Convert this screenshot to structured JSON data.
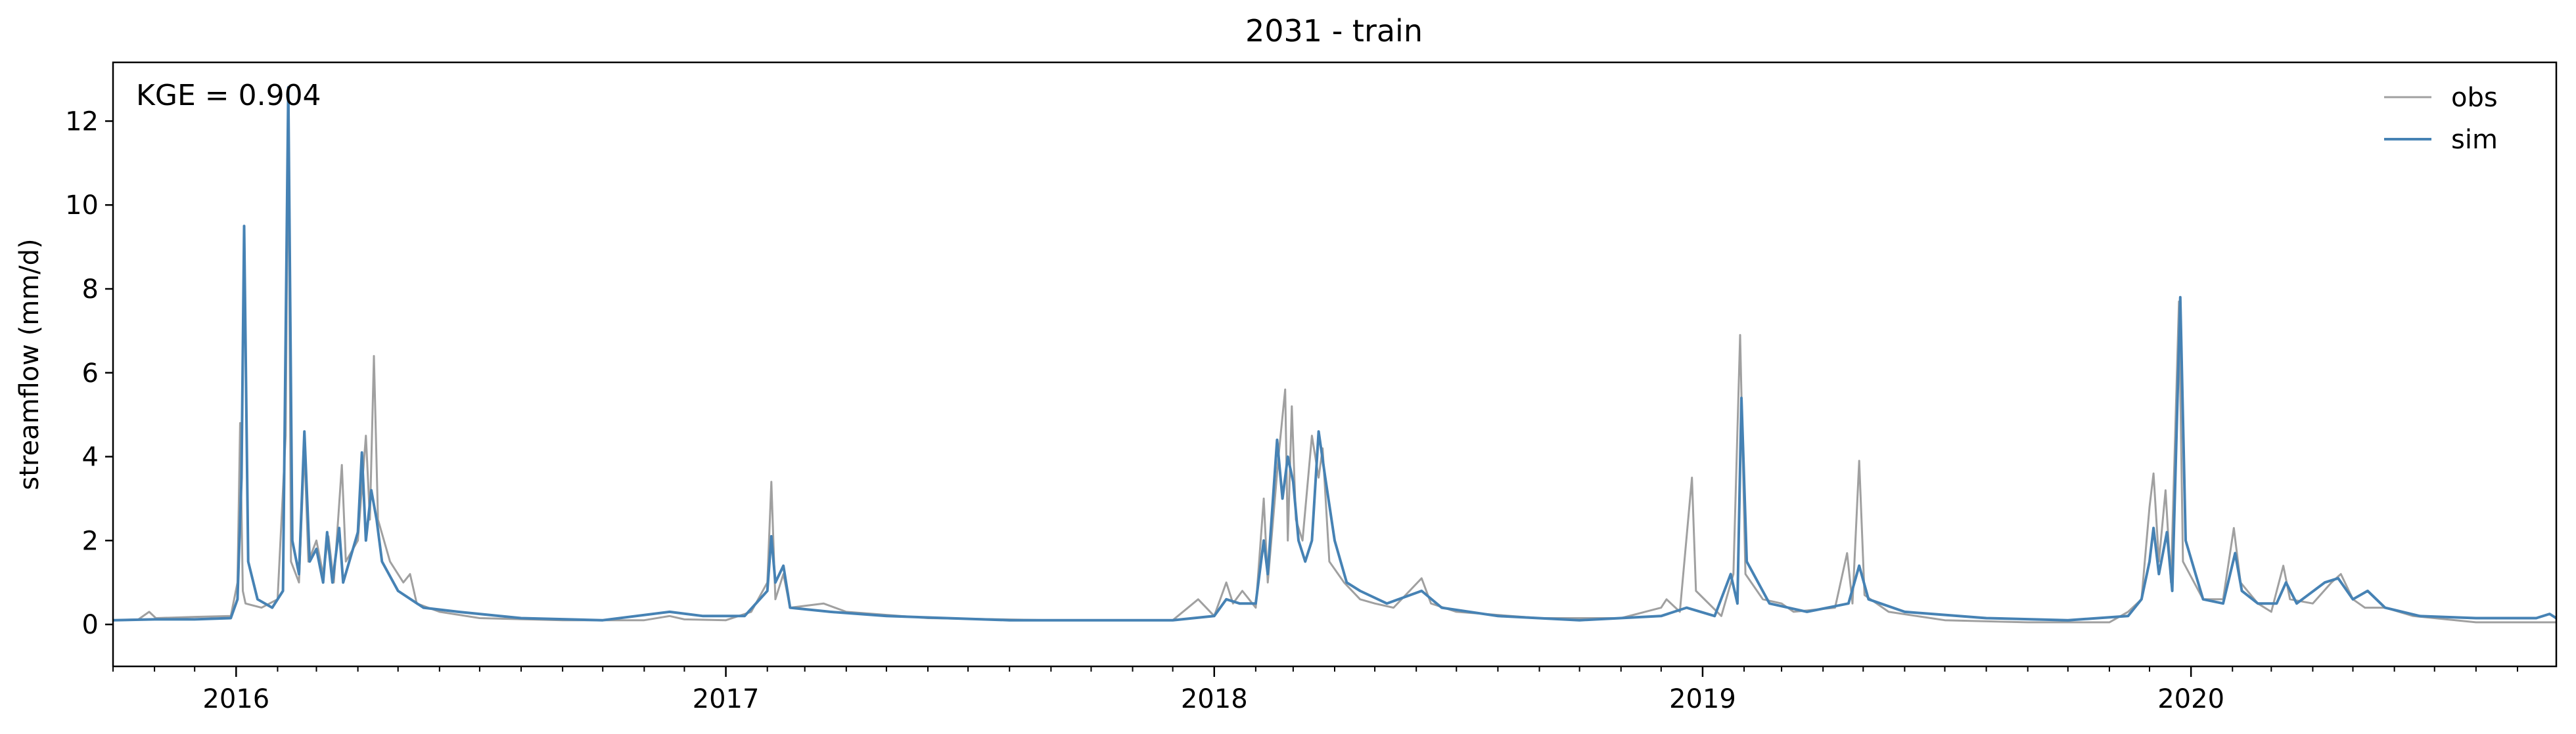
{
  "chart_data": {
    "type": "line",
    "title": "2031 - train",
    "xlabel": "",
    "ylabel": "streamflow (mm/d)",
    "annotation": "KGE = 0.904",
    "xlim": [
      "2015-10-01",
      "2020-09-30"
    ],
    "ylim": [
      -1,
      13.4
    ],
    "yticks": [
      0,
      2,
      4,
      6,
      8,
      10,
      12
    ],
    "xticks": [
      {
        "date": "2016-01-01",
        "label": "2016"
      },
      {
        "date": "2017-01-01",
        "label": "2017"
      },
      {
        "date": "2018-01-01",
        "label": "2018"
      },
      {
        "date": "2019-01-01",
        "label": "2019"
      },
      {
        "date": "2020-01-01",
        "label": "2020"
      }
    ],
    "legend_position": "top-right",
    "grid": false,
    "series": [
      {
        "name": "obs",
        "color": "#a0a0a0",
        "points": [
          [
            "2015-10-01",
            0.1
          ],
          [
            "2015-10-20",
            0.12
          ],
          [
            "2015-10-28",
            0.3
          ],
          [
            "2015-11-02",
            0.15
          ],
          [
            "2015-12-01",
            0.18
          ],
          [
            "2015-12-28",
            0.2
          ],
          [
            "2016-01-02",
            1.0
          ],
          [
            "2016-01-04",
            4.8
          ],
          [
            "2016-01-06",
            0.8
          ],
          [
            "2016-01-08",
            0.5
          ],
          [
            "2016-01-20",
            0.4
          ],
          [
            "2016-02-01",
            0.6
          ],
          [
            "2016-02-07",
            4.5
          ],
          [
            "2016-02-09",
            12.5
          ],
          [
            "2016-02-11",
            1.5
          ],
          [
            "2016-02-17",
            1.0
          ],
          [
            "2016-02-21",
            4.2
          ],
          [
            "2016-02-24",
            1.5
          ],
          [
            "2016-03-01",
            2.0
          ],
          [
            "2016-03-06",
            1.2
          ],
          [
            "2016-03-10",
            2.1
          ],
          [
            "2016-03-14",
            1.0
          ],
          [
            "2016-03-20",
            3.8
          ],
          [
            "2016-03-23",
            1.5
          ],
          [
            "2016-04-01",
            2.0
          ],
          [
            "2016-04-07",
            4.5
          ],
          [
            "2016-04-10",
            2.5
          ],
          [
            "2016-04-13",
            6.4
          ],
          [
            "2016-04-16",
            2.5
          ],
          [
            "2016-04-25",
            1.5
          ],
          [
            "2016-05-05",
            1.0
          ],
          [
            "2016-05-10",
            1.2
          ],
          [
            "2016-05-15",
            0.5
          ],
          [
            "2016-06-01",
            0.3
          ],
          [
            "2016-07-01",
            0.15
          ],
          [
            "2016-09-01",
            0.1
          ],
          [
            "2016-11-01",
            0.1
          ],
          [
            "2016-11-20",
            0.2
          ],
          [
            "2016-12-01",
            0.12
          ],
          [
            "2017-01-01",
            0.1
          ],
          [
            "2017-01-20",
            0.3
          ],
          [
            "2017-02-01",
            1.0
          ],
          [
            "2017-02-04",
            3.4
          ],
          [
            "2017-02-07",
            0.6
          ],
          [
            "2017-02-13",
            1.2
          ],
          [
            "2017-02-18",
            0.4
          ],
          [
            "2017-03-15",
            0.5
          ],
          [
            "2017-04-01",
            0.3
          ],
          [
            "2017-06-01",
            0.15
          ],
          [
            "2017-09-01",
            0.1
          ],
          [
            "2017-12-01",
            0.1
          ],
          [
            "2017-12-20",
            0.6
          ],
          [
            "2018-01-01",
            0.2
          ],
          [
            "2018-01-10",
            1.0
          ],
          [
            "2018-01-15",
            0.5
          ],
          [
            "2018-01-22",
            0.8
          ],
          [
            "2018-02-01",
            0.4
          ],
          [
            "2018-02-07",
            3.0
          ],
          [
            "2018-02-10",
            1.0
          ],
          [
            "2018-02-18",
            4.0
          ],
          [
            "2018-02-23",
            5.6
          ],
          [
            "2018-02-25",
            2.0
          ],
          [
            "2018-02-28",
            5.2
          ],
          [
            "2018-03-03",
            2.5
          ],
          [
            "2018-03-08",
            2.0
          ],
          [
            "2018-03-15",
            4.5
          ],
          [
            "2018-03-20",
            3.5
          ],
          [
            "2018-03-23",
            4.2
          ],
          [
            "2018-03-28",
            1.5
          ],
          [
            "2018-04-08",
            1.0
          ],
          [
            "2018-04-20",
            0.6
          ],
          [
            "2018-05-01",
            0.5
          ],
          [
            "2018-05-15",
            0.4
          ],
          [
            "2018-06-05",
            1.1
          ],
          [
            "2018-06-12",
            0.5
          ],
          [
            "2018-07-01",
            0.3
          ],
          [
            "2018-09-01",
            0.15
          ],
          [
            "2018-11-01",
            0.15
          ],
          [
            "2018-12-01",
            0.4
          ],
          [
            "2018-12-05",
            0.6
          ],
          [
            "2018-12-15",
            0.3
          ],
          [
            "2018-12-24",
            3.5
          ],
          [
            "2018-12-27",
            0.8
          ],
          [
            "2019-01-15",
            0.2
          ],
          [
            "2019-01-24",
            1.2
          ],
          [
            "2019-01-29",
            6.9
          ],
          [
            "2019-02-02",
            1.2
          ],
          [
            "2019-02-15",
            0.6
          ],
          [
            "2019-03-01",
            0.5
          ],
          [
            "2019-03-10",
            0.3
          ],
          [
            "2019-04-10",
            0.4
          ],
          [
            "2019-04-19",
            1.7
          ],
          [
            "2019-04-23",
            0.5
          ],
          [
            "2019-04-28",
            3.9
          ],
          [
            "2019-05-02",
            0.7
          ],
          [
            "2019-05-20",
            0.3
          ],
          [
            "2019-07-01",
            0.1
          ],
          [
            "2019-09-01",
            0.05
          ],
          [
            "2019-11-01",
            0.05
          ],
          [
            "2019-11-15",
            0.3
          ],
          [
            "2019-11-25",
            0.6
          ],
          [
            "2019-12-01",
            2.8
          ],
          [
            "2019-12-04",
            3.6
          ],
          [
            "2019-12-08",
            1.5
          ],
          [
            "2019-12-13",
            3.2
          ],
          [
            "2019-12-17",
            1.0
          ],
          [
            "2019-12-23",
            7.7
          ],
          [
            "2019-12-26",
            1.5
          ],
          [
            "2020-01-10",
            0.6
          ],
          [
            "2020-01-25",
            0.6
          ],
          [
            "2020-02-02",
            2.3
          ],
          [
            "2020-02-07",
            1.0
          ],
          [
            "2020-02-20",
            0.5
          ],
          [
            "2020-03-01",
            0.3
          ],
          [
            "2020-03-10",
            1.4
          ],
          [
            "2020-03-15",
            0.6
          ],
          [
            "2020-04-01",
            0.5
          ],
          [
            "2020-04-15",
            1.0
          ],
          [
            "2020-04-22",
            1.2
          ],
          [
            "2020-05-01",
            0.6
          ],
          [
            "2020-05-10",
            0.4
          ],
          [
            "2020-05-25",
            0.4
          ],
          [
            "2020-06-15",
            0.2
          ],
          [
            "2020-08-01",
            0.05
          ],
          [
            "2020-09-15",
            0.05
          ],
          [
            "2020-09-30",
            0.05
          ]
        ]
      },
      {
        "name": "sim",
        "color": "#4682b4",
        "points": [
          [
            "2015-10-01",
            0.1
          ],
          [
            "2015-11-01",
            0.12
          ],
          [
            "2015-12-01",
            0.12
          ],
          [
            "2015-12-28",
            0.15
          ],
          [
            "2016-01-02",
            0.6
          ],
          [
            "2016-01-05",
            3.5
          ],
          [
            "2016-01-07",
            9.5
          ],
          [
            "2016-01-10",
            1.5
          ],
          [
            "2016-01-17",
            0.6
          ],
          [
            "2016-01-28",
            0.4
          ],
          [
            "2016-02-05",
            0.8
          ],
          [
            "2016-02-09",
            12.8
          ],
          [
            "2016-02-12",
            2.0
          ],
          [
            "2016-02-17",
            1.2
          ],
          [
            "2016-02-21",
            4.6
          ],
          [
            "2016-02-25",
            1.5
          ],
          [
            "2016-03-01",
            1.8
          ],
          [
            "2016-03-06",
            1.0
          ],
          [
            "2016-03-09",
            2.2
          ],
          [
            "2016-03-13",
            1.0
          ],
          [
            "2016-03-18",
            2.3
          ],
          [
            "2016-03-21",
            1.0
          ],
          [
            "2016-04-01",
            2.2
          ],
          [
            "2016-04-04",
            4.1
          ],
          [
            "2016-04-07",
            2.0
          ],
          [
            "2016-04-11",
            3.2
          ],
          [
            "2016-04-15",
            2.5
          ],
          [
            "2016-04-19",
            1.5
          ],
          [
            "2016-05-01",
            0.8
          ],
          [
            "2016-05-20",
            0.4
          ],
          [
            "2016-06-15",
            0.3
          ],
          [
            "2016-08-01",
            0.15
          ],
          [
            "2016-10-01",
            0.1
          ],
          [
            "2016-11-20",
            0.3
          ],
          [
            "2016-12-15",
            0.2
          ],
          [
            "2017-01-15",
            0.2
          ],
          [
            "2017-02-01",
            0.8
          ],
          [
            "2017-02-04",
            2.1
          ],
          [
            "2017-02-07",
            1.0
          ],
          [
            "2017-02-13",
            1.4
          ],
          [
            "2017-02-18",
            0.4
          ],
          [
            "2017-03-20",
            0.3
          ],
          [
            "2017-05-01",
            0.2
          ],
          [
            "2017-08-01",
            0.1
          ],
          [
            "2017-12-01",
            0.1
          ],
          [
            "2018-01-01",
            0.2
          ],
          [
            "2018-01-10",
            0.6
          ],
          [
            "2018-01-20",
            0.5
          ],
          [
            "2018-02-01",
            0.5
          ],
          [
            "2018-02-07",
            2.0
          ],
          [
            "2018-02-10",
            1.2
          ],
          [
            "2018-02-17",
            4.4
          ],
          [
            "2018-02-21",
            3.0
          ],
          [
            "2018-02-25",
            4.0
          ],
          [
            "2018-03-01",
            3.4
          ],
          [
            "2018-03-05",
            2.0
          ],
          [
            "2018-03-10",
            1.5
          ],
          [
            "2018-03-15",
            2.0
          ],
          [
            "2018-03-20",
            4.6
          ],
          [
            "2018-03-25",
            3.5
          ],
          [
            "2018-04-01",
            2.0
          ],
          [
            "2018-04-10",
            1.0
          ],
          [
            "2018-04-20",
            0.8
          ],
          [
            "2018-05-10",
            0.5
          ],
          [
            "2018-06-05",
            0.8
          ],
          [
            "2018-06-20",
            0.4
          ],
          [
            "2018-08-01",
            0.2
          ],
          [
            "2018-10-01",
            0.1
          ],
          [
            "2018-12-01",
            0.2
          ],
          [
            "2018-12-20",
            0.4
          ],
          [
            "2019-01-10",
            0.2
          ],
          [
            "2019-01-22",
            1.2
          ],
          [
            "2019-01-27",
            0.5
          ],
          [
            "2019-01-30",
            5.4
          ],
          [
            "2019-02-03",
            1.5
          ],
          [
            "2019-02-20",
            0.5
          ],
          [
            "2019-03-20",
            0.3
          ],
          [
            "2019-04-20",
            0.5
          ],
          [
            "2019-04-28",
            1.4
          ],
          [
            "2019-05-05",
            0.6
          ],
          [
            "2019-06-01",
            0.3
          ],
          [
            "2019-08-01",
            0.15
          ],
          [
            "2019-10-01",
            0.1
          ],
          [
            "2019-11-15",
            0.2
          ],
          [
            "2019-11-25",
            0.6
          ],
          [
            "2019-12-01",
            1.5
          ],
          [
            "2019-12-04",
            2.3
          ],
          [
            "2019-12-08",
            1.2
          ],
          [
            "2019-12-14",
            2.2
          ],
          [
            "2019-12-18",
            0.8
          ],
          [
            "2019-12-24",
            7.8
          ],
          [
            "2019-12-28",
            2.0
          ],
          [
            "2020-01-10",
            0.6
          ],
          [
            "2020-01-25",
            0.5
          ],
          [
            "2020-02-03",
            1.7
          ],
          [
            "2020-02-08",
            0.8
          ],
          [
            "2020-02-20",
            0.5
          ],
          [
            "2020-03-05",
            0.5
          ],
          [
            "2020-03-12",
            1.0
          ],
          [
            "2020-03-20",
            0.5
          ],
          [
            "2020-04-10",
            1.0
          ],
          [
            "2020-04-20",
            1.1
          ],
          [
            "2020-05-01",
            0.6
          ],
          [
            "2020-05-12",
            0.8
          ],
          [
            "2020-05-25",
            0.4
          ],
          [
            "2020-06-20",
            0.2
          ],
          [
            "2020-08-01",
            0.15
          ],
          [
            "2020-09-15",
            0.15
          ],
          [
            "2020-09-25",
            0.25
          ],
          [
            "2020-09-30",
            0.15
          ]
        ]
      }
    ]
  }
}
